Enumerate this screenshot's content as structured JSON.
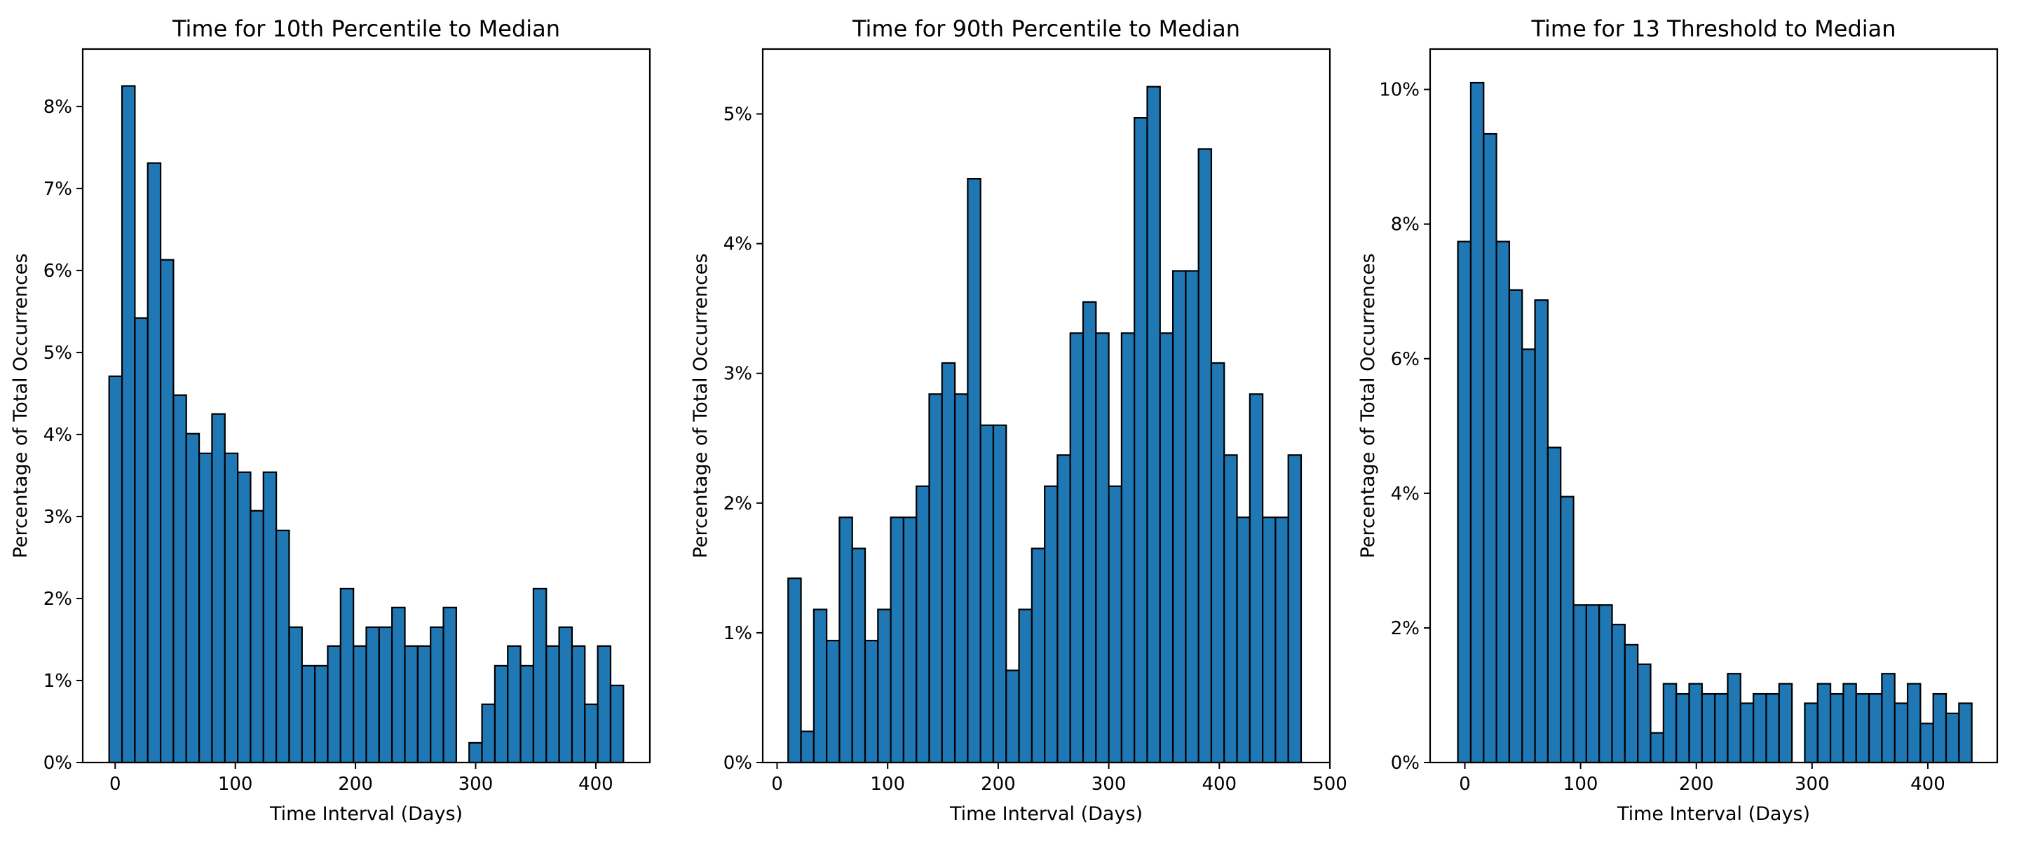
{
  "chart_data": [
    {
      "type": "bar",
      "title": "Time for 10th Percentile to Median",
      "xlabel": "Time Interval (Days)",
      "ylabel": "Percentage of Total Occurrences",
      "xlim": [
        -27,
        445
      ],
      "ylim": [
        0,
        8.7
      ],
      "xticks": [
        0,
        100,
        200,
        300,
        400
      ],
      "xtick_labels": [
        "0",
        "100",
        "200",
        "300",
        "400"
      ],
      "yticks": [
        0,
        1,
        2,
        3,
        4,
        5,
        6,
        7,
        8
      ],
      "ytick_labels": [
        "0%",
        "1%",
        "2%",
        "3%",
        "4%",
        "5%",
        "6%",
        "7%",
        "8%"
      ],
      "bin_start": -5,
      "bin_width": 10.7,
      "values": [
        4.71,
        8.25,
        5.42,
        7.31,
        6.13,
        4.48,
        4.01,
        3.77,
        4.25,
        3.77,
        3.54,
        3.07,
        3.54,
        2.83,
        1.65,
        1.18,
        1.18,
        1.42,
        2.12,
        1.42,
        1.65,
        1.65,
        1.89,
        1.42,
        1.42,
        1.65,
        1.89,
        0,
        0.24,
        0.71,
        1.18,
        1.42,
        1.18,
        2.12,
        1.42,
        1.65,
        1.42,
        0.71,
        1.42,
        0.94
      ],
      "color": "#1f77b4"
    },
    {
      "type": "bar",
      "title": "Time for 90th Percentile to Median",
      "xlabel": "Time Interval (Days)",
      "ylabel": "Percentage of Total Occurrences",
      "xlim": [
        -13,
        500
      ],
      "ylim": [
        0,
        5.5
      ],
      "xticks": [
        0,
        100,
        200,
        300,
        400,
        500
      ],
      "xtick_labels": [
        "0",
        "100",
        "200",
        "300",
        "400",
        "500"
      ],
      "yticks": [
        0,
        1,
        2,
        3,
        4,
        5
      ],
      "ytick_labels": [
        "0%",
        "1%",
        "2%",
        "3%",
        "4%",
        "5%"
      ],
      "bin_start": 10,
      "bin_width": 11.6,
      "values": [
        1.42,
        0.24,
        1.18,
        0.94,
        1.89,
        1.65,
        0.94,
        1.18,
        1.89,
        1.89,
        2.13,
        2.84,
        3.08,
        2.84,
        4.5,
        2.6,
        2.6,
        0.71,
        1.18,
        1.65,
        2.13,
        2.37,
        3.31,
        3.55,
        3.31,
        2.13,
        3.31,
        4.97,
        5.21,
        3.31,
        3.79,
        3.79,
        4.73,
        3.08,
        2.37,
        1.89,
        2.84,
        1.89,
        1.89,
        2.37
      ],
      "color": "#1f77b4"
    },
    {
      "type": "bar",
      "title": "Time for 13 Threshold to Median",
      "xlabel": "Time Interval (Days)",
      "ylabel": "Percentage of Total Occurrences",
      "xlim": [
        -30,
        460
      ],
      "ylim": [
        0,
        10.6
      ],
      "xticks": [
        0,
        100,
        200,
        300,
        400
      ],
      "xtick_labels": [
        "0",
        "100",
        "200",
        "300",
        "400"
      ],
      "yticks": [
        0,
        2,
        4,
        6,
        8,
        10
      ],
      "ytick_labels": [
        "0%",
        "2%",
        "4%",
        "6%",
        "8%",
        "10%"
      ],
      "bin_start": -6,
      "bin_width": 11.1,
      "values": [
        7.74,
        10.1,
        9.34,
        7.74,
        7.02,
        6.14,
        6.87,
        4.68,
        3.95,
        2.34,
        2.34,
        2.34,
        2.05,
        1.75,
        1.46,
        0.44,
        1.17,
        1.02,
        1.17,
        1.02,
        1.02,
        1.32,
        0.88,
        1.02,
        1.02,
        1.17,
        0,
        0.88,
        1.17,
        1.02,
        1.17,
        1.02,
        1.02,
        1.32,
        0.88,
        1.17,
        0.58,
        1.02,
        0.73,
        0.88
      ],
      "color": "#1f77b4"
    }
  ]
}
